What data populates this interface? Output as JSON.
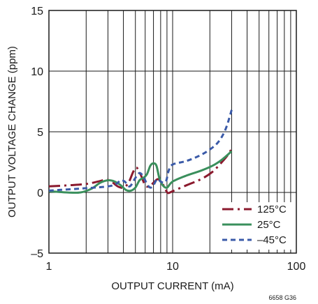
{
  "chart_data": {
    "type": "line",
    "x_scale": "log",
    "xlim": [
      1,
      100
    ],
    "ylim": [
      -5,
      15
    ],
    "xlabel": "OUTPUT CURRENT (mA)",
    "ylabel": "OUTPUT VOLTAGE CHANGE (ppm)",
    "x_tick_labels": [
      {
        "value": 1,
        "label": "1"
      },
      {
        "value": 10,
        "label": "10"
      },
      {
        "value": 100,
        "label": "100"
      }
    ],
    "y_tick_labels": [
      {
        "value": -5,
        "label": "–5"
      },
      {
        "value": 0,
        "label": "0"
      },
      {
        "value": 5,
        "label": "5"
      },
      {
        "value": 10,
        "label": "10"
      },
      {
        "value": 15,
        "label": "15"
      }
    ],
    "grid": true,
    "legend_position": "bottom-right",
    "footnote": "6658 G36",
    "series": [
      {
        "name": "125°C",
        "color": "#8b1a2e",
        "dash": "long-dash",
        "points": [
          [
            1.0,
            0.5
          ],
          [
            1.5,
            0.6
          ],
          [
            2.0,
            0.7
          ],
          [
            2.5,
            0.9
          ],
          [
            2.9,
            1.05
          ],
          [
            3.2,
            0.9
          ],
          [
            3.6,
            0.5
          ],
          [
            4.0,
            0.4
          ],
          [
            4.4,
            0.8
          ],
          [
            4.8,
            1.7
          ],
          [
            5.1,
            2.05
          ],
          [
            5.5,
            1.5
          ],
          [
            6.0,
            0.6
          ],
          [
            6.5,
            0.5
          ],
          [
            7.0,
            0.8
          ],
          [
            7.6,
            1.1
          ],
          [
            8.2,
            0.8
          ],
          [
            8.8,
            0.2
          ],
          [
            9.2,
            -0.05
          ],
          [
            10.0,
            0.1
          ],
          [
            13.0,
            0.6
          ],
          [
            17.0,
            1.1
          ],
          [
            21.0,
            1.7
          ],
          [
            25.0,
            2.5
          ],
          [
            28.0,
            3.1
          ],
          [
            30.0,
            3.6
          ]
        ]
      },
      {
        "name": "25°C",
        "color": "#3a8f5c",
        "dash": "solid",
        "points": [
          [
            1.0,
            0.1
          ],
          [
            1.4,
            0.0
          ],
          [
            1.8,
            0.0
          ],
          [
            2.2,
            0.3
          ],
          [
            2.6,
            0.8
          ],
          [
            3.0,
            1.0
          ],
          [
            3.4,
            0.9
          ],
          [
            3.8,
            0.6
          ],
          [
            4.2,
            0.2
          ],
          [
            4.6,
            0.15
          ],
          [
            5.0,
            0.4
          ],
          [
            5.4,
            1.0
          ],
          [
            5.8,
            1.2
          ],
          [
            6.2,
            1.5
          ],
          [
            6.6,
            2.2
          ],
          [
            7.0,
            2.4
          ],
          [
            7.4,
            2.2
          ],
          [
            7.8,
            1.2
          ],
          [
            8.3,
            0.6
          ],
          [
            9.0,
            0.4
          ],
          [
            10.0,
            0.9
          ],
          [
            13.0,
            1.4
          ],
          [
            17.0,
            1.8
          ],
          [
            21.0,
            2.2
          ],
          [
            25.0,
            2.7
          ],
          [
            30.0,
            3.4
          ]
        ]
      },
      {
        "name": "–45°C",
        "color": "#3a5aa8",
        "dash": "short-dash",
        "points": [
          [
            1.0,
            0.15
          ],
          [
            2.0,
            0.35
          ],
          [
            3.0,
            0.5
          ],
          [
            3.5,
            0.7
          ],
          [
            3.8,
            1.0
          ],
          [
            4.1,
            0.9
          ],
          [
            4.5,
            0.5
          ],
          [
            5.0,
            1.2
          ],
          [
            5.4,
            1.6
          ],
          [
            5.8,
            1.3
          ],
          [
            6.2,
            0.7
          ],
          [
            6.6,
            0.4
          ],
          [
            7.0,
            0.6
          ],
          [
            7.5,
            1.1
          ],
          [
            8.0,
            0.9
          ],
          [
            8.5,
            0.8
          ],
          [
            8.9,
            1.0
          ],
          [
            9.3,
            1.8
          ],
          [
            10.0,
            2.3
          ],
          [
            13.0,
            2.6
          ],
          [
            17.0,
            3.1
          ],
          [
            21.0,
            3.7
          ],
          [
            24.0,
            4.3
          ],
          [
            27.0,
            5.3
          ],
          [
            30.0,
            6.8
          ]
        ]
      }
    ]
  }
}
